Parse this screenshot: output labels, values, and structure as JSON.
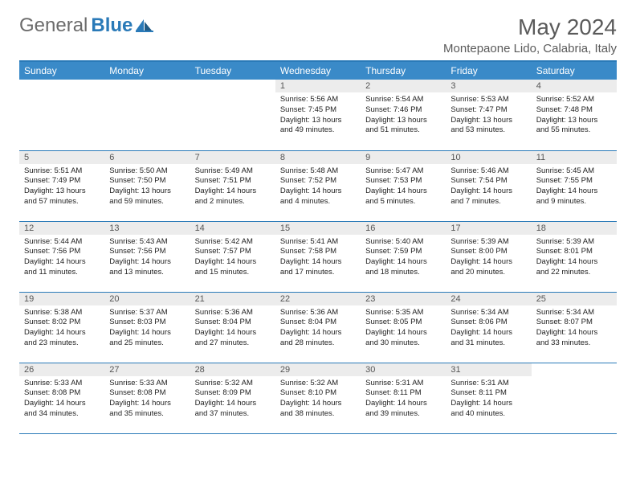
{
  "brand": {
    "general": "General",
    "blue": "Blue"
  },
  "title": "May 2024",
  "location": "Montepaone Lido, Calabria, Italy",
  "colors": {
    "header_bg": "#3a8ac8",
    "header_text": "#ffffff",
    "border": "#2a7ab8",
    "daynum_bg": "#ececec",
    "text": "#222222",
    "title_text": "#5a5a5a",
    "logo_gray": "#6b6b6b",
    "logo_blue": "#2a7ab8"
  },
  "fonts": {
    "title_size": 28,
    "location_size": 15,
    "th_size": 12,
    "daynum_size": 11,
    "body_size": 9.5
  },
  "weekdays": [
    "Sunday",
    "Monday",
    "Tuesday",
    "Wednesday",
    "Thursday",
    "Friday",
    "Saturday"
  ],
  "weeks": [
    [
      {
        "empty": true
      },
      {
        "empty": true
      },
      {
        "empty": true
      },
      {
        "day": "1",
        "sunrise": "Sunrise: 5:56 AM",
        "sunset": "Sunset: 7:45 PM",
        "daylight1": "Daylight: 13 hours",
        "daylight2": "and 49 minutes."
      },
      {
        "day": "2",
        "sunrise": "Sunrise: 5:54 AM",
        "sunset": "Sunset: 7:46 PM",
        "daylight1": "Daylight: 13 hours",
        "daylight2": "and 51 minutes."
      },
      {
        "day": "3",
        "sunrise": "Sunrise: 5:53 AM",
        "sunset": "Sunset: 7:47 PM",
        "daylight1": "Daylight: 13 hours",
        "daylight2": "and 53 minutes."
      },
      {
        "day": "4",
        "sunrise": "Sunrise: 5:52 AM",
        "sunset": "Sunset: 7:48 PM",
        "daylight1": "Daylight: 13 hours",
        "daylight2": "and 55 minutes."
      }
    ],
    [
      {
        "day": "5",
        "sunrise": "Sunrise: 5:51 AM",
        "sunset": "Sunset: 7:49 PM",
        "daylight1": "Daylight: 13 hours",
        "daylight2": "and 57 minutes."
      },
      {
        "day": "6",
        "sunrise": "Sunrise: 5:50 AM",
        "sunset": "Sunset: 7:50 PM",
        "daylight1": "Daylight: 13 hours",
        "daylight2": "and 59 minutes."
      },
      {
        "day": "7",
        "sunrise": "Sunrise: 5:49 AM",
        "sunset": "Sunset: 7:51 PM",
        "daylight1": "Daylight: 14 hours",
        "daylight2": "and 2 minutes."
      },
      {
        "day": "8",
        "sunrise": "Sunrise: 5:48 AM",
        "sunset": "Sunset: 7:52 PM",
        "daylight1": "Daylight: 14 hours",
        "daylight2": "and 4 minutes."
      },
      {
        "day": "9",
        "sunrise": "Sunrise: 5:47 AM",
        "sunset": "Sunset: 7:53 PM",
        "daylight1": "Daylight: 14 hours",
        "daylight2": "and 5 minutes."
      },
      {
        "day": "10",
        "sunrise": "Sunrise: 5:46 AM",
        "sunset": "Sunset: 7:54 PM",
        "daylight1": "Daylight: 14 hours",
        "daylight2": "and 7 minutes."
      },
      {
        "day": "11",
        "sunrise": "Sunrise: 5:45 AM",
        "sunset": "Sunset: 7:55 PM",
        "daylight1": "Daylight: 14 hours",
        "daylight2": "and 9 minutes."
      }
    ],
    [
      {
        "day": "12",
        "sunrise": "Sunrise: 5:44 AM",
        "sunset": "Sunset: 7:56 PM",
        "daylight1": "Daylight: 14 hours",
        "daylight2": "and 11 minutes."
      },
      {
        "day": "13",
        "sunrise": "Sunrise: 5:43 AM",
        "sunset": "Sunset: 7:56 PM",
        "daylight1": "Daylight: 14 hours",
        "daylight2": "and 13 minutes."
      },
      {
        "day": "14",
        "sunrise": "Sunrise: 5:42 AM",
        "sunset": "Sunset: 7:57 PM",
        "daylight1": "Daylight: 14 hours",
        "daylight2": "and 15 minutes."
      },
      {
        "day": "15",
        "sunrise": "Sunrise: 5:41 AM",
        "sunset": "Sunset: 7:58 PM",
        "daylight1": "Daylight: 14 hours",
        "daylight2": "and 17 minutes."
      },
      {
        "day": "16",
        "sunrise": "Sunrise: 5:40 AM",
        "sunset": "Sunset: 7:59 PM",
        "daylight1": "Daylight: 14 hours",
        "daylight2": "and 18 minutes."
      },
      {
        "day": "17",
        "sunrise": "Sunrise: 5:39 AM",
        "sunset": "Sunset: 8:00 PM",
        "daylight1": "Daylight: 14 hours",
        "daylight2": "and 20 minutes."
      },
      {
        "day": "18",
        "sunrise": "Sunrise: 5:39 AM",
        "sunset": "Sunset: 8:01 PM",
        "daylight1": "Daylight: 14 hours",
        "daylight2": "and 22 minutes."
      }
    ],
    [
      {
        "day": "19",
        "sunrise": "Sunrise: 5:38 AM",
        "sunset": "Sunset: 8:02 PM",
        "daylight1": "Daylight: 14 hours",
        "daylight2": "and 23 minutes."
      },
      {
        "day": "20",
        "sunrise": "Sunrise: 5:37 AM",
        "sunset": "Sunset: 8:03 PM",
        "daylight1": "Daylight: 14 hours",
        "daylight2": "and 25 minutes."
      },
      {
        "day": "21",
        "sunrise": "Sunrise: 5:36 AM",
        "sunset": "Sunset: 8:04 PM",
        "daylight1": "Daylight: 14 hours",
        "daylight2": "and 27 minutes."
      },
      {
        "day": "22",
        "sunrise": "Sunrise: 5:36 AM",
        "sunset": "Sunset: 8:04 PM",
        "daylight1": "Daylight: 14 hours",
        "daylight2": "and 28 minutes."
      },
      {
        "day": "23",
        "sunrise": "Sunrise: 5:35 AM",
        "sunset": "Sunset: 8:05 PM",
        "daylight1": "Daylight: 14 hours",
        "daylight2": "and 30 minutes."
      },
      {
        "day": "24",
        "sunrise": "Sunrise: 5:34 AM",
        "sunset": "Sunset: 8:06 PM",
        "daylight1": "Daylight: 14 hours",
        "daylight2": "and 31 minutes."
      },
      {
        "day": "25",
        "sunrise": "Sunrise: 5:34 AM",
        "sunset": "Sunset: 8:07 PM",
        "daylight1": "Daylight: 14 hours",
        "daylight2": "and 33 minutes."
      }
    ],
    [
      {
        "day": "26",
        "sunrise": "Sunrise: 5:33 AM",
        "sunset": "Sunset: 8:08 PM",
        "daylight1": "Daylight: 14 hours",
        "daylight2": "and 34 minutes."
      },
      {
        "day": "27",
        "sunrise": "Sunrise: 5:33 AM",
        "sunset": "Sunset: 8:08 PM",
        "daylight1": "Daylight: 14 hours",
        "daylight2": "and 35 minutes."
      },
      {
        "day": "28",
        "sunrise": "Sunrise: 5:32 AM",
        "sunset": "Sunset: 8:09 PM",
        "daylight1": "Daylight: 14 hours",
        "daylight2": "and 37 minutes."
      },
      {
        "day": "29",
        "sunrise": "Sunrise: 5:32 AM",
        "sunset": "Sunset: 8:10 PM",
        "daylight1": "Daylight: 14 hours",
        "daylight2": "and 38 minutes."
      },
      {
        "day": "30",
        "sunrise": "Sunrise: 5:31 AM",
        "sunset": "Sunset: 8:11 PM",
        "daylight1": "Daylight: 14 hours",
        "daylight2": "and 39 minutes."
      },
      {
        "day": "31",
        "sunrise": "Sunrise: 5:31 AM",
        "sunset": "Sunset: 8:11 PM",
        "daylight1": "Daylight: 14 hours",
        "daylight2": "and 40 minutes."
      },
      {
        "empty": true
      }
    ]
  ]
}
